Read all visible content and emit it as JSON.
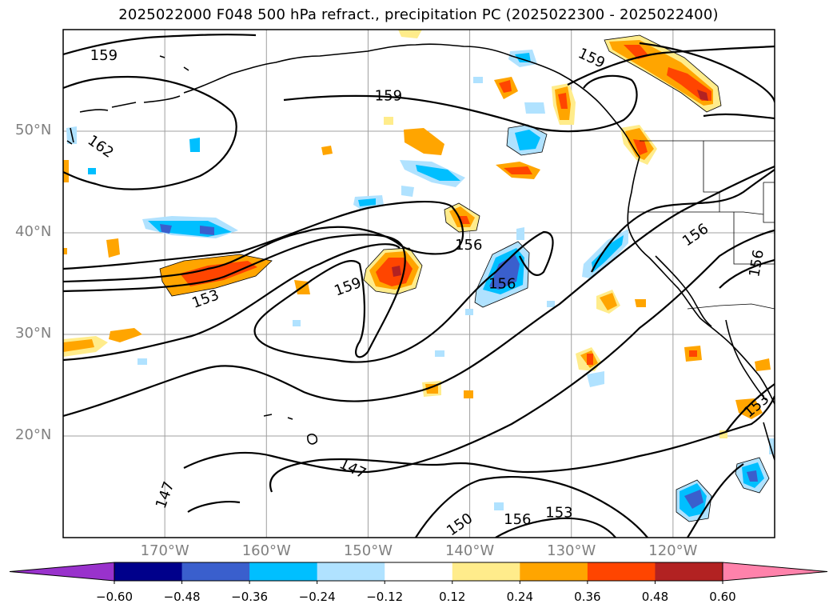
{
  "title": "2025022000 F048 500 hPa refract., precipitation PC (2025022300 - 2025022400)",
  "map": {
    "lon_range": [
      -180,
      -110
    ],
    "lat_range": [
      10,
      60
    ],
    "lat_labels": [
      "50°N",
      "40°N",
      "30°N",
      "20°N"
    ],
    "lon_labels": [
      "170°W",
      "160°W",
      "150°W",
      "140°W",
      "130°W",
      "120°W"
    ],
    "gridlines": true,
    "contour_labels": [
      {
        "text": "159",
        "lon": -176,
        "lat": 57.5
      },
      {
        "text": "162",
        "lon": -176.3,
        "lat": 48.5
      },
      {
        "text": "159",
        "lon": -148,
        "lat": 53.5
      },
      {
        "text": "159",
        "lon": -128,
        "lat": 57.2
      },
      {
        "text": "156",
        "lon": -140.1,
        "lat": 38.8
      },
      {
        "text": "156",
        "lon": -136.8,
        "lat": 35.0
      },
      {
        "text": "159",
        "lon": -152,
        "lat": 34.7
      },
      {
        "text": "153",
        "lon": -166,
        "lat": 33.5
      },
      {
        "text": "156",
        "lon": -117.8,
        "lat": 39.8
      },
      {
        "text": "156",
        "lon": -111.8,
        "lat": 37.0
      },
      {
        "text": "153",
        "lon": -111.8,
        "lat": 23.0
      },
      {
        "text": "147",
        "lon": -151.5,
        "lat": 16.8
      },
      {
        "text": "147",
        "lon": -170,
        "lat": 14.2
      },
      {
        "text": "150",
        "lon": -141,
        "lat": 11.3
      },
      {
        "text": "156",
        "lon": -135.3,
        "lat": 11.8
      },
      {
        "text": "153",
        "lon": -131.2,
        "lat": 12.5
      }
    ]
  },
  "colorbar": {
    "tick_labels": [
      "−0.60",
      "−0.48",
      "−0.36",
      "−0.24",
      "−0.12",
      "0.12",
      "0.24",
      "0.36",
      "0.48",
      "0.60"
    ],
    "colors": [
      "#9932cc",
      "#8b2fc9",
      "#00008b",
      "#3a5fcd",
      "#00bfff",
      "#b0e2ff",
      "#ffffff",
      "#ffec8b",
      "#ffa500",
      "#ff4500",
      "#b22222",
      "#ff82ab"
    ],
    "extend": "both"
  }
}
